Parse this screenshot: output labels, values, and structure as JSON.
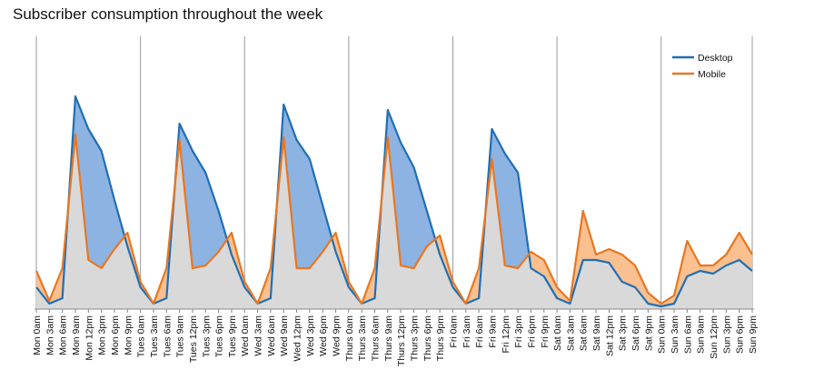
{
  "chart_data": {
    "type": "line",
    "title": "Subscriber consumption throughout the week",
    "xlabel": "",
    "ylabel": "",
    "ylim": [
      0,
      100
    ],
    "x": [
      "Mon 0am",
      "Mon 3am",
      "Mon 6am",
      "Mon 9am",
      "Mon 12pm",
      "Mon 3pm",
      "Mon 6pm",
      "Mon 9pm",
      "Tues 0am",
      "Tues 3am",
      "Tues 6am",
      "Tues 9am",
      "Tues 12pm",
      "Tues 3pm",
      "Tues 6pm",
      "Tues 9pm",
      "Wed 0am",
      "Wed 3am",
      "Wed 6am",
      "Wed 9am",
      "Wed 12pm",
      "Wed 3pm",
      "Wed 6pm",
      "Wed 9pm",
      "Thurs 0am",
      "Thurs 3am",
      "Thurs 6am",
      "Thurs 9am",
      "Thurs 12pm",
      "Thurs 3pm",
      "Thurs 6pm",
      "Thurs 9pm",
      "Fri 0am",
      "Fri 3am",
      "Fri 6am",
      "Fri 9am",
      "Fri 12pm",
      "Fri 3pm",
      "Fri 6pm",
      "Fri 9pm",
      "Sat 0am",
      "Sat 3am",
      "Sat 6am",
      "Sat 9am",
      "Sat 12pm",
      "Sat 3pm",
      "Sat 6pm",
      "Sat 9pm",
      "Sun 0am",
      "Sun 3am",
      "Sun 6am",
      "Sun 9am",
      "Sun 12pm",
      "Sun 3pm",
      "Sun 6pm",
      "Sun 9pm"
    ],
    "series": [
      {
        "name": "Desktop",
        "color": "#1f6fb4",
        "fill": "#8db3e2",
        "values": [
          8,
          2,
          4,
          78,
          66,
          58,
          40,
          23,
          8,
          2,
          4,
          68,
          58,
          50,
          36,
          20,
          8,
          2,
          4,
          75,
          62,
          55,
          38,
          21,
          8,
          2,
          4,
          73,
          61,
          52,
          36,
          20,
          8,
          2,
          4,
          66,
          57,
          50,
          15,
          12,
          4,
          2,
          18,
          18,
          17,
          10,
          8,
          2,
          1,
          2,
          12,
          14,
          13,
          16,
          18,
          14
        ]
      },
      {
        "name": "Mobile",
        "color": "#e87722",
        "fill": "#fac090",
        "values": [
          14,
          3,
          15,
          64,
          18,
          15,
          22,
          28,
          10,
          2,
          15,
          62,
          15,
          16,
          21,
          28,
          10,
          2,
          15,
          63,
          15,
          15,
          21,
          28,
          10,
          2,
          15,
          63,
          16,
          15,
          23,
          27,
          10,
          2,
          15,
          55,
          16,
          15,
          21,
          18,
          8,
          3,
          36,
          20,
          22,
          20,
          16,
          6,
          2,
          5,
          25,
          16,
          16,
          20,
          28,
          20
        ]
      }
    ],
    "legend": [
      "Desktop",
      "Mobile"
    ],
    "legend_position": "top-right",
    "grid": "vertical day separators"
  }
}
